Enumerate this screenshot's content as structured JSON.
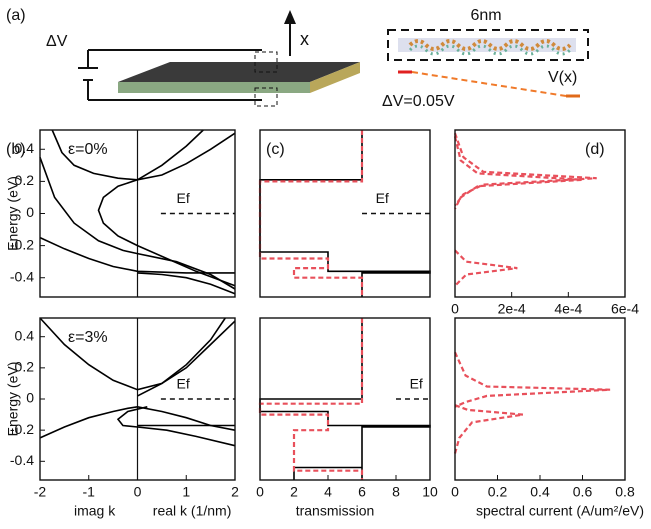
{
  "panel_a": {
    "label": "(a)",
    "voltage": "ΔV",
    "axis": "x",
    "width": "6nm",
    "potential": "V(x)",
    "bias": "ΔV=0.05V"
  },
  "chart_data": [
    {
      "type": "line",
      "panel_label": "(b)",
      "annotation": "ε=0%",
      "ylabel": "Energy (eV)",
      "xlim": [
        -2,
        2
      ],
      "ylim": [
        -0.52,
        0.52
      ],
      "yticks": [
        -0.4,
        -0.2,
        0,
        0.2,
        0.4
      ],
      "vlines": [
        0
      ],
      "ef": {
        "label": "Ef",
        "value": 0
      },
      "series": [
        {
          "color": "#000000",
          "x": [
            -1.75,
            -1.55,
            -1.3,
            -0.9,
            -0.4,
            0,
            0.5,
            1.0,
            1.5,
            2.0
          ],
          "y": [
            0.52,
            0.38,
            0.3,
            0.25,
            0.22,
            0.21,
            0.24,
            0.31,
            0.4,
            0.5
          ]
        },
        {
          "color": "#000000",
          "x": [
            0,
            0.5,
            1.0,
            1.35
          ],
          "y": [
            0.21,
            0.3,
            0.42,
            0.52
          ]
        },
        {
          "color": "#000000",
          "x": [
            0,
            -0.4,
            -0.7,
            -0.8,
            -0.7,
            -0.4,
            0,
            0.6,
            1.2,
            2.0
          ],
          "y": [
            0.21,
            0.17,
            0.1,
            0.02,
            -0.06,
            -0.14,
            -0.2,
            -0.28,
            -0.36,
            -0.45
          ]
        },
        {
          "color": "#000000",
          "x": [
            -2,
            -1.7,
            -1.3,
            -0.8,
            -0.3,
            0,
            0.8,
            1.5,
            2
          ],
          "y": [
            0.35,
            0.1,
            -0.06,
            -0.17,
            -0.23,
            -0.25,
            -0.3,
            -0.38,
            -0.47
          ]
        },
        {
          "color": "#000000",
          "x": [
            -2,
            -1.5,
            -1,
            -0.5,
            0,
            1,
            2
          ],
          "y": [
            -0.15,
            -0.22,
            -0.28,
            -0.33,
            -0.36,
            -0.37,
            -0.37
          ]
        },
        {
          "color": "#000000",
          "x": [
            0,
            0.5,
            1,
            1.5,
            2
          ],
          "y": [
            -0.37,
            -0.38,
            -0.4,
            -0.44,
            -0.5
          ]
        }
      ]
    },
    {
      "type": "line",
      "panel_label": "(c)",
      "xlim": [
        0,
        10
      ],
      "ylim": [
        -0.52,
        0.52
      ],
      "ef": {
        "label": "Ef",
        "value": 0
      },
      "series": [
        {
          "color": "#000000",
          "x": [
            6,
            6,
            0,
            0,
            4,
            4,
            10,
            10,
            6,
            6
          ],
          "y": [
            0.52,
            0.21,
            0.21,
            -0.24,
            -0.24,
            -0.36,
            -0.36,
            -0.37,
            -0.37,
            -0.52
          ]
        },
        {
          "color": "#e8505b",
          "dashed": true,
          "x": [
            6,
            6,
            0,
            0,
            4,
            4,
            2,
            2,
            6,
            6
          ],
          "y": [
            0.52,
            0.2,
            0.2,
            -0.28,
            -0.28,
            -0.34,
            -0.34,
            -0.4,
            -0.4,
            -0.52
          ]
        }
      ]
    },
    {
      "type": "line",
      "panel_label": "(d)",
      "xlim": [
        0,
        0.0006
      ],
      "ylim": [
        -0.52,
        0.52
      ],
      "xticks": [
        0,
        {
          "value": 0.0002,
          "label": "2e-4"
        },
        {
          "value": 0.0004,
          "label": "4e-4"
        },
        {
          "value": 0.0006,
          "label": "6e-4"
        }
      ],
      "series": [
        {
          "color": "#e8505b",
          "dashed": true,
          "x": [
            0,
            3e-05,
            0.0001,
            0.0005,
            0.0001,
            3e-05,
            0
          ],
          "y": [
            0.5,
            0.35,
            0.26,
            0.22,
            0.18,
            0.12,
            0.05
          ]
        },
        {
          "color": "#e8505b",
          "dashed": true,
          "x": [
            0,
            2e-05,
            8e-05,
            0.00045,
            8e-05,
            2e-05,
            0
          ],
          "y": [
            0.48,
            0.33,
            0.25,
            0.21,
            0.17,
            0.1,
            0.03
          ]
        },
        {
          "color": "#e8505b",
          "dashed": true,
          "x": [
            0,
            4e-05,
            0.00022,
            4e-05,
            0
          ],
          "y": [
            -0.23,
            -0.3,
            -0.34,
            -0.38,
            -0.45
          ]
        }
      ]
    },
    {
      "type": "line",
      "annotation": "ε=3%",
      "ylabel": "Energy (eV)",
      "xlabels": [
        "imag k",
        "real k (1/nm)"
      ],
      "xlim": [
        -2,
        2
      ],
      "ylim": [
        -0.52,
        0.52
      ],
      "xticks": [
        -2,
        -1,
        0,
        1,
        2
      ],
      "yticks": [
        -0.4,
        -0.2,
        0,
        0.2,
        0.4
      ],
      "vlines": [
        0
      ],
      "ef": {
        "label": "Ef",
        "value": 0
      },
      "series": [
        {
          "color": "#000000",
          "x": [
            -2,
            -1.5,
            -1,
            -0.5,
            0,
            0.5,
            1,
            1.5,
            2
          ],
          "y": [
            0.52,
            0.35,
            0.22,
            0.12,
            0.06,
            0.1,
            0.2,
            0.35,
            0.5
          ]
        },
        {
          "color": "#000000",
          "x": [
            0,
            0.5,
            1,
            1.5,
            1.8
          ],
          "y": [
            0.02,
            0.1,
            0.22,
            0.38,
            0.52
          ]
        },
        {
          "color": "#000000",
          "x": [
            -2,
            -1.5,
            -1,
            -0.5,
            -0.2,
            0,
            0.5,
            1,
            1.5,
            2
          ],
          "y": [
            -0.25,
            -0.18,
            -0.12,
            -0.08,
            -0.06,
            -0.05,
            -0.08,
            -0.12,
            -0.17,
            -0.2
          ]
        },
        {
          "color": "#000000",
          "x": [
            0.2,
            -0.2,
            -0.4,
            -0.3,
            0,
            0.6,
            1.2,
            2
          ],
          "y": [
            -0.05,
            -0.08,
            -0.13,
            -0.17,
            -0.18,
            -0.2,
            -0.24,
            -0.3
          ]
        },
        {
          "color": "#000000",
          "x": [
            0,
            1,
            2
          ],
          "y": [
            -0.17,
            -0.17,
            -0.17
          ]
        }
      ]
    },
    {
      "type": "line",
      "xlabel": "transmission",
      "xlim": [
        0,
        10
      ],
      "ylim": [
        -0.52,
        0.52
      ],
      "xticks": [
        0,
        2,
        4,
        6,
        8,
        10
      ],
      "ef": {
        "label": "Ef",
        "value": 0
      },
      "series": [
        {
          "color": "#000000",
          "x": [
            6,
            6,
            0,
            0,
            4,
            4,
            10,
            10,
            6,
            6
          ],
          "y": [
            0.52,
            0,
            0,
            -0.08,
            -0.08,
            -0.17,
            -0.17,
            -0.18,
            -0.18,
            -0.52
          ]
        },
        {
          "color": "#000000",
          "x": [
            2,
            2,
            6
          ],
          "y": [
            -0.52,
            -0.44,
            -0.44
          ]
        },
        {
          "color": "#e8505b",
          "dashed": true,
          "x": [
            6,
            6,
            0,
            0,
            4,
            4,
            2,
            2,
            6,
            6
          ],
          "y": [
            0.52,
            -0.03,
            -0.03,
            -0.1,
            -0.1,
            -0.2,
            -0.2,
            -0.46,
            -0.46,
            -0.52
          ]
        }
      ]
    },
    {
      "type": "line",
      "xlabel": "spectral current (A/um²/eV)",
      "xlim": [
        0,
        0.8
      ],
      "ylim": [
        -0.52,
        0.52
      ],
      "xticks": [
        0,
        0.2,
        0.4,
        0.6,
        0.8
      ],
      "series": [
        {
          "color": "#e8505b",
          "dashed": true,
          "x": [
            0,
            0.05,
            0.15,
            0.73,
            0.15,
            0.05,
            0
          ],
          "y": [
            0.3,
            0.15,
            0.08,
            0.06,
            0.02,
            -0.02,
            -0.05
          ]
        },
        {
          "color": "#e8505b",
          "dashed": true,
          "x": [
            0,
            0.06,
            0.32,
            0.08,
            0.02,
            0
          ],
          "y": [
            -0.04,
            -0.07,
            -0.1,
            -0.15,
            -0.25,
            -0.35
          ]
        }
      ]
    }
  ]
}
